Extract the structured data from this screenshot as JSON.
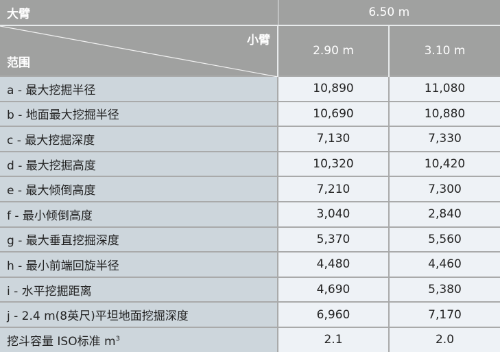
{
  "header": {
    "boom_label": "大臂",
    "boom_value": "6.50 m",
    "arm_label": "小臂",
    "range_label": "范围",
    "arm_values": [
      "2.90 m",
      "3.10 m"
    ]
  },
  "rows": [
    {
      "label": "a - 最大挖掘半径",
      "values": [
        "10,890",
        "11,080"
      ]
    },
    {
      "label": "b - 地面最大挖掘半径",
      "values": [
        "10,690",
        "10,880"
      ]
    },
    {
      "label": "c - 最大挖掘深度",
      "values": [
        "7,130",
        "7,330"
      ]
    },
    {
      "label": "d - 最大挖掘高度",
      "values": [
        "10,320",
        "10,420"
      ]
    },
    {
      "label": "e - 最大倾倒高度",
      "values": [
        "7,210",
        "7,300"
      ]
    },
    {
      "label": "f - 最小倾倒高度",
      "values": [
        "3,040",
        "2,840"
      ]
    },
    {
      "label": "g - 最大垂直挖掘深度",
      "values": [
        "5,370",
        "5,560"
      ]
    },
    {
      "label": "h - 最小前端回旋半径",
      "values": [
        "4,480",
        "4,460"
      ]
    },
    {
      "label": "i - 水平挖掘距离",
      "values": [
        "4,690",
        "5,380"
      ]
    },
    {
      "label": "j - 2.4 m(8英尺)平坦地面挖掘深度",
      "values": [
        "6,960",
        "7,170"
      ]
    }
  ],
  "bucket": {
    "label": "挖斗容量 ISO标准  m",
    "unit_sup": "3",
    "values": [
      "2.1",
      "2.0"
    ]
  },
  "colors": {
    "header_bg": "#a0a1a0",
    "label_bg": "#cdd6dc",
    "value_bg": "#eef2f6"
  }
}
